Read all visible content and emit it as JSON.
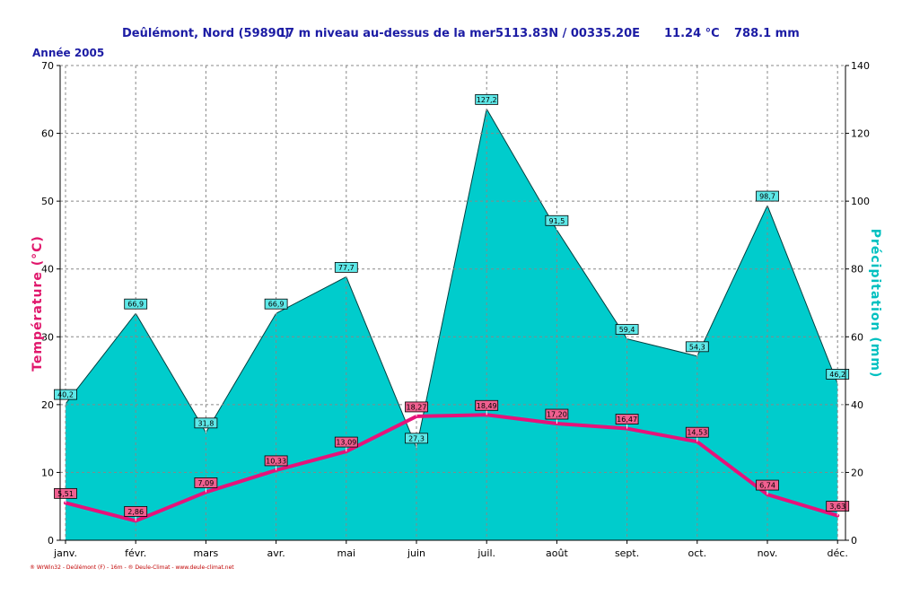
{
  "header": {
    "station": "Deûlémont, Nord (59890)",
    "altitude": "17 m niveau au-dessus de la mer",
    "coords": "5113.83N / 00335.20E",
    "mean_temp": "11.24 °C",
    "total_precip": "788.1 mm",
    "year_label": "Année  2005"
  },
  "footer": "® WrWin32 - Deûlémont (F) - 16m - ® Deule-Climat - www.deule-climat.net",
  "colors": {
    "temperature": "#e6127a",
    "precip_fill": "#00cccc",
    "left_label": "#e0186c",
    "right_label": "#00c0c0",
    "header": "#1c1ca4"
  },
  "chart_data": {
    "type": "area",
    "categories": [
      "janv.",
      "févr.",
      "mars",
      "avr.",
      "mai",
      "juin",
      "juil.",
      "août",
      "sept.",
      "oct.",
      "nov.",
      "déc."
    ],
    "ylabel_left": "Température  (°C)",
    "ylabel_right": "Précipitation  (mm)",
    "ylim_left": [
      0,
      70
    ],
    "ylim_right": [
      0,
      140
    ],
    "yticks_left": [
      "0",
      "10",
      "20",
      "30",
      "40",
      "50",
      "60",
      "70"
    ],
    "yticks_right": [
      "0",
      "20",
      "40",
      "60",
      "80",
      "100",
      "120",
      "140"
    ],
    "grid": true,
    "series": [
      {
        "kind": "line",
        "axis": "left",
        "values": [
          5.51,
          2.86,
          7.09,
          10.33,
          13.09,
          18.27,
          18.49,
          17.2,
          16.47,
          14.53,
          6.74,
          3.63
        ],
        "labels": [
          "5,51",
          "2,86",
          "7,09",
          "10,33",
          "13,09",
          "18,27",
          "18,49",
          "17,20",
          "16,47",
          "14,53",
          "6,74",
          "3,63"
        ]
      },
      {
        "kind": "area",
        "axis": "right",
        "values": [
          40.2,
          66.9,
          31.8,
          66.9,
          77.7,
          27.3,
          127.2,
          91.5,
          59.4,
          54.3,
          98.7,
          46.2
        ],
        "labels": [
          "40,2",
          "66,9",
          "31,8",
          "66,9",
          "77,7",
          "27,3",
          "127,2",
          "91,5",
          "59,4",
          "54,3",
          "98,7",
          "46,2"
        ]
      }
    ]
  }
}
